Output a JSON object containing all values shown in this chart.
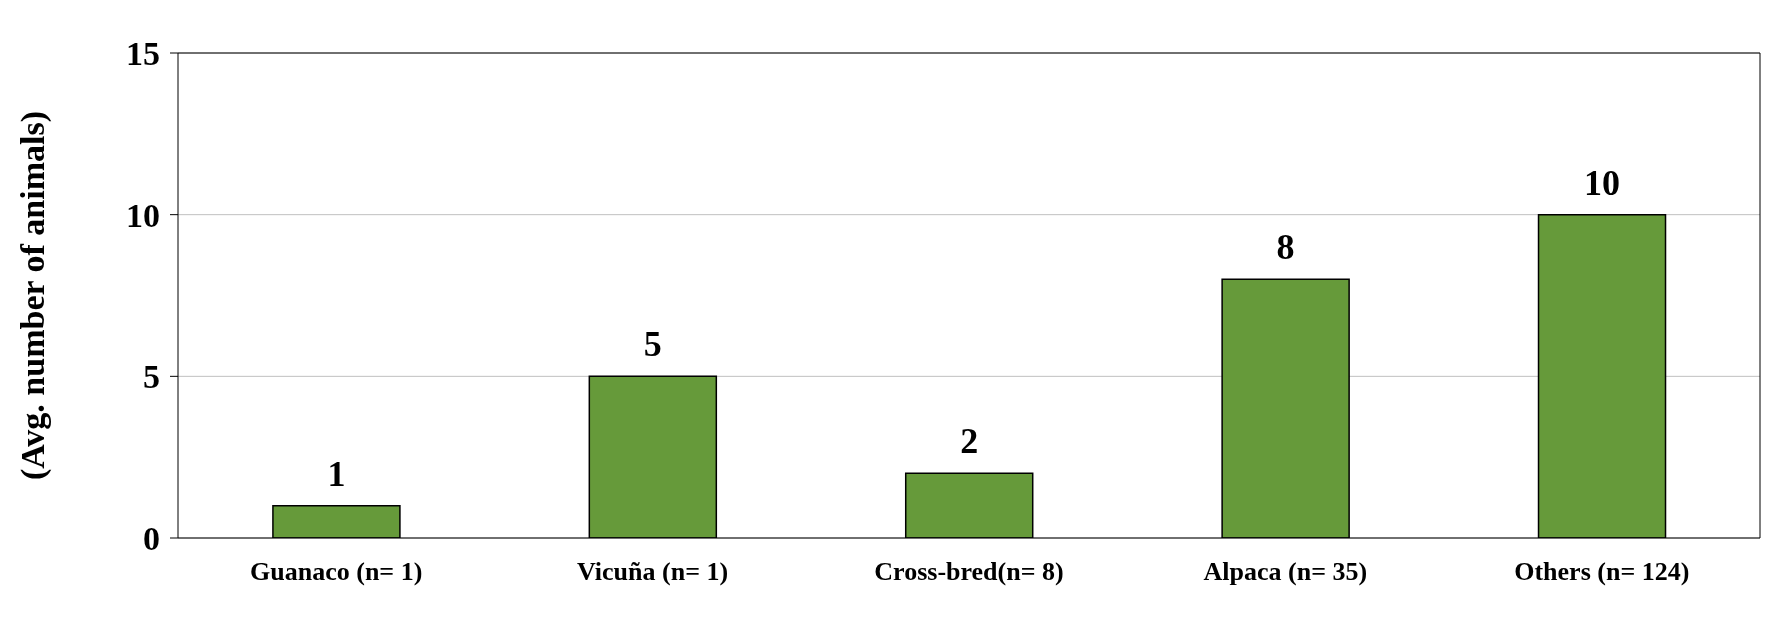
{
  "chart_data": {
    "type": "bar",
    "ylabel": "(Avg. number of animals)",
    "categories": [
      "Guanaco (n= 1)",
      "Vicuña (n= 1)",
      "Cross-bred(n= 8)",
      "Alpaca (n= 35)",
      "Others (n= 124)"
    ],
    "values": [
      1,
      5,
      2,
      8,
      10
    ],
    "color": "#669a3a",
    "ylim": [
      0,
      15
    ],
    "yticks": [
      0,
      5,
      10,
      15
    ],
    "grid": "y",
    "data_labels": true
  }
}
